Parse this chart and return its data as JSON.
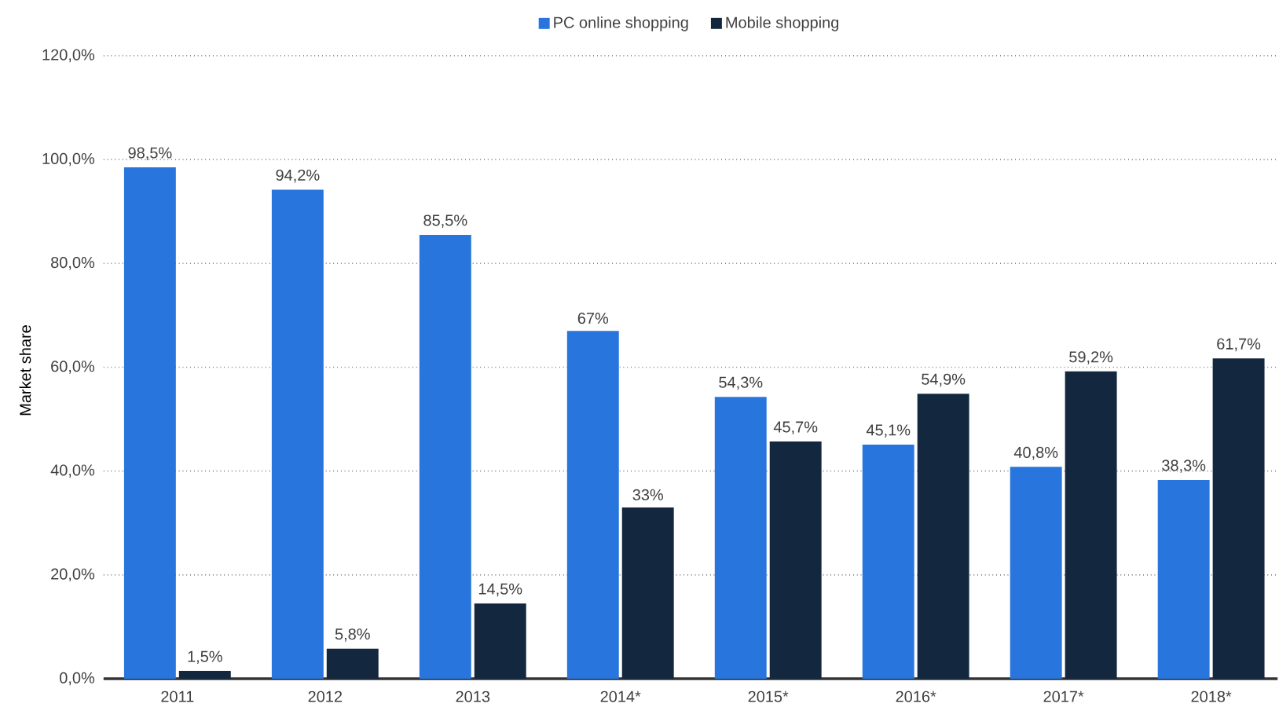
{
  "chart_data": {
    "type": "bar",
    "ylabel": "Market share",
    "categories": [
      "2011",
      "2012",
      "2013",
      "2014*",
      "2015*",
      "2016*",
      "2017*",
      "2018*"
    ],
    "series": [
      {
        "name": "PC online shopping",
        "color": "#2876dd",
        "values": [
          98.5,
          94.2,
          85.5,
          67,
          54.3,
          45.1,
          40.8,
          38.3
        ],
        "value_labels": [
          "98,5%",
          "94,2%",
          "85,5%",
          "67%",
          "54,3%",
          "45,1%",
          "40,8%",
          "38,3%"
        ]
      },
      {
        "name": "Mobile shopping",
        "color": "#13283e",
        "values": [
          1.5,
          5.8,
          14.5,
          33,
          45.7,
          54.9,
          59.2,
          61.7
        ],
        "value_labels": [
          "1,5%",
          "5,8%",
          "14,5%",
          "33%",
          "45,7%",
          "54,9%",
          "59,2%",
          "61,7%"
        ]
      }
    ],
    "ylim": [
      0,
      120
    ],
    "yticks": [
      {
        "value": 0,
        "label": "0,0%"
      },
      {
        "value": 20,
        "label": "20,0%"
      },
      {
        "value": 40,
        "label": "40,0%"
      },
      {
        "value": 60,
        "label": "60,0%"
      },
      {
        "value": 80,
        "label": "80,0%"
      },
      {
        "value": 100,
        "label": "100,0%"
      },
      {
        "value": 120,
        "label": "120,0%"
      }
    ],
    "grid": "y",
    "legend": "top"
  }
}
